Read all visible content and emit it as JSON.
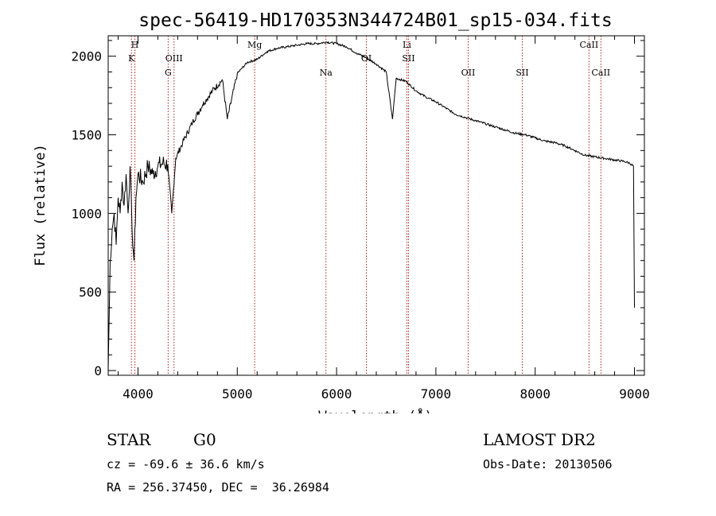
{
  "chart_data": {
    "type": "line",
    "title": "spec-56419-HD170353N344724B01_sp15-034.fits",
    "xlabel": "Wavelength (Å)",
    "ylabel": "Flux (relative)",
    "xlim": [
      3700,
      9100
    ],
    "ylim": [
      -30,
      2130
    ],
    "xticks": [
      "4000",
      "5000",
      "6000",
      "7000",
      "8000",
      "9000"
    ],
    "yticks": [
      "0",
      "500",
      "1000",
      "1500",
      "2000"
    ],
    "series": [
      {
        "x": [
          3700,
          3720,
          3740,
          3760,
          3780,
          3800,
          3820,
          3840,
          3860,
          3880,
          3900,
          3920,
          3940,
          3960,
          3980,
          4000,
          4050,
          4100,
          4150,
          4200,
          4250,
          4300,
          4340,
          4380,
          4450,
          4550,
          4650,
          4750,
          4850,
          4900,
          5000,
          5100,
          5200,
          5300,
          5400,
          5500,
          5600,
          5700,
          5800,
          5900,
          6000,
          6100,
          6200,
          6300,
          6400,
          6500,
          6563,
          6600,
          6700,
          6800,
          6900,
          7000,
          7100,
          7200,
          7300,
          7400,
          7500,
          7600,
          7700,
          7800,
          7900,
          8000,
          8100,
          8200,
          8300,
          8400,
          8500,
          8600,
          8700,
          8800,
          8900,
          8950,
          8990,
          9000
        ],
        "y": [
          0,
          700,
          900,
          1000,
          800,
          1100,
          1000,
          1200,
          1050,
          1250,
          1000,
          1300,
          900,
          700,
          1100,
          1250,
          1200,
          1300,
          1250,
          1300,
          1320,
          1310,
          1000,
          1350,
          1450,
          1580,
          1690,
          1780,
          1850,
          1600,
          1890,
          1960,
          1980,
          2030,
          2050,
          2060,
          2070,
          2080,
          2080,
          2090,
          2080,
          2060,
          2020,
          1990,
          1950,
          1900,
          1600,
          1860,
          1840,
          1780,
          1740,
          1710,
          1670,
          1630,
          1610,
          1590,
          1570,
          1550,
          1530,
          1510,
          1500,
          1480,
          1460,
          1450,
          1430,
          1400,
          1370,
          1360,
          1350,
          1340,
          1330,
          1320,
          1300,
          400
        ]
      }
    ],
    "lines": [
      {
        "name": "K",
        "x": 3934,
        "row": 1
      },
      {
        "name": "H",
        "x": 3969,
        "row": 0
      },
      {
        "name": "G",
        "x": 4304,
        "row": 2
      },
      {
        "name": "OIII",
        "x": 4363,
        "row": 1
      },
      {
        "name": "Mg",
        "x": 5175,
        "row": 0
      },
      {
        "name": "Na",
        "x": 5893,
        "row": 2
      },
      {
        "name": "OI",
        "x": 6300,
        "row": 1
      },
      {
        "name": "Li",
        "x": 6708,
        "row": 0
      },
      {
        "name": "SII",
        "x": 6724,
        "row": 1
      },
      {
        "name": "OII",
        "x": 7325,
        "row": 2
      },
      {
        "name": "SII",
        "x": 7870,
        "row": 2
      },
      {
        "name": "CaII",
        "x": 8542,
        "row": 0
      },
      {
        "name": "CaII",
        "x": 8662,
        "row": 2
      }
    ],
    "colors": {
      "spectrum": "#000000",
      "line_markers": "#b02020"
    }
  },
  "info": {
    "class": "STAR",
    "subclass": "G0",
    "survey": "LAMOST DR2",
    "cz": "cz = -69.6 ± 36.6 km/s",
    "obs_date": "Obs-Date: 20130506",
    "coords": "RA = 256.37450, DEC =  36.26984"
  }
}
